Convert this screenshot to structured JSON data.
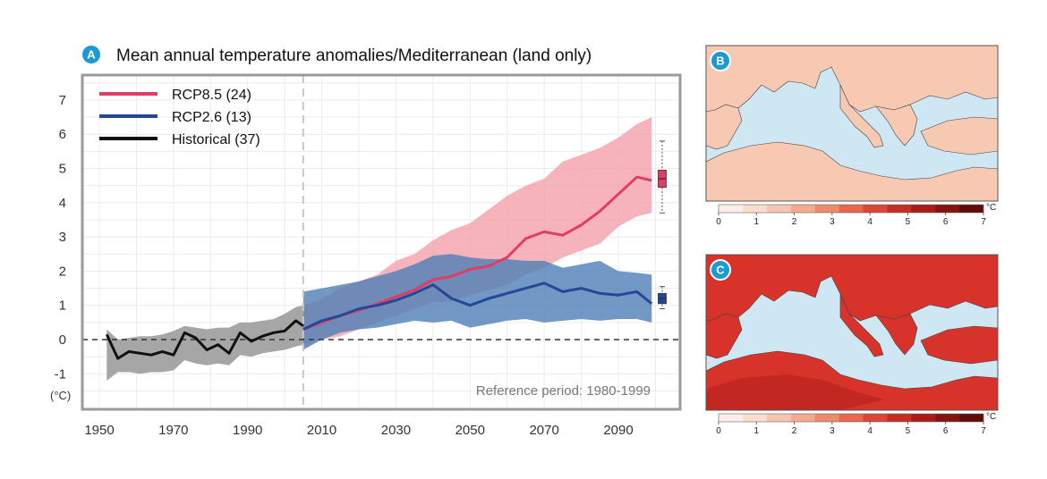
{
  "panel_a": {
    "badge": "A",
    "title": "Mean annual temperature anomalies/Mediterranean (land only)",
    "y_unit": "(°C)",
    "reference_note": "Reference period: 1980-1999"
  },
  "panel_b": {
    "badge": "B"
  },
  "panel_c": {
    "badge": "C"
  },
  "colorbar": {
    "ticks": [
      "0",
      "1",
      "2",
      "3",
      "4",
      "5",
      "6",
      "7"
    ],
    "unit": "°C",
    "colors": [
      "#fcefe9",
      "#f9ddd0",
      "#f6c5b1",
      "#f3aa8e",
      "#ee8a6c",
      "#e8674d",
      "#dd4537",
      "#c82d24",
      "#aa1b17",
      "#861310",
      "#5e0b09"
    ]
  },
  "colors": {
    "rcp85_line": "#e23c64",
    "rcp85_band": "#f4a0aa",
    "rcp26_line": "#25479a",
    "rcp26_band": "#4f80b8",
    "hist_line": "#111111",
    "hist_band": "#a6a6a6",
    "sea": "#cfe6f3",
    "map_b_land": "#f7c9b3",
    "map_c_land": "#d8332a"
  },
  "chart_data": {
    "type": "line",
    "xlim": [
      1945,
      2110
    ],
    "ylim": [
      -1.5,
      7.8
    ],
    "xticks": [
      1950,
      1970,
      1990,
      2010,
      2030,
      2050,
      2070,
      2090
    ],
    "yticks": [
      -1,
      0,
      1,
      2,
      3,
      4,
      5,
      6,
      7
    ],
    "grid": true,
    "legend_position": "top-left",
    "vline_x": 2005,
    "hline_y": 0,
    "series": [
      {
        "name": "RCP8.5 (24)",
        "key": "rcp85",
        "x": [
          2005,
          2010,
          2015,
          2020,
          2025,
          2030,
          2035,
          2040,
          2045,
          2050,
          2055,
          2060,
          2065,
          2070,
          2075,
          2080,
          2085,
          2090,
          2095,
          2099
        ],
        "values": [
          0.3,
          0.5,
          0.7,
          0.85,
          1.05,
          1.25,
          1.45,
          1.75,
          1.85,
          2.05,
          2.15,
          2.4,
          2.95,
          3.15,
          3.05,
          3.35,
          3.75,
          4.25,
          4.75,
          4.65
        ],
        "lower": [
          -0.2,
          0.0,
          0.1,
          0.3,
          0.5,
          0.7,
          0.9,
          1.1,
          1.1,
          1.3,
          1.45,
          1.6,
          1.9,
          2.1,
          2.4,
          2.6,
          2.8,
          3.3,
          3.6,
          3.7
        ],
        "upper": [
          1.0,
          1.2,
          1.5,
          1.7,
          1.9,
          2.3,
          2.5,
          2.9,
          3.2,
          3.4,
          3.8,
          4.2,
          4.5,
          4.7,
          5.2,
          5.4,
          5.6,
          5.9,
          6.3,
          6.5
        ]
      },
      {
        "name": "RCP2.6 (13)",
        "key": "rcp26",
        "x": [
          2005,
          2010,
          2015,
          2020,
          2025,
          2030,
          2035,
          2040,
          2045,
          2050,
          2055,
          2060,
          2065,
          2070,
          2075,
          2080,
          2085,
          2090,
          2095,
          2099
        ],
        "values": [
          0.3,
          0.55,
          0.7,
          0.9,
          1.0,
          1.15,
          1.35,
          1.6,
          1.2,
          1.0,
          1.2,
          1.35,
          1.5,
          1.65,
          1.4,
          1.5,
          1.35,
          1.3,
          1.4,
          1.05
        ],
        "lower": [
          -0.3,
          0.0,
          0.2,
          0.3,
          0.35,
          0.45,
          0.55,
          0.5,
          0.55,
          0.35,
          0.45,
          0.55,
          0.6,
          0.5,
          0.55,
          0.6,
          0.55,
          0.6,
          0.6,
          0.5
        ],
        "upper": [
          1.4,
          1.5,
          1.6,
          1.7,
          1.85,
          2.0,
          2.2,
          2.45,
          2.5,
          2.4,
          2.35,
          2.35,
          2.3,
          2.3,
          2.1,
          2.2,
          2.3,
          2.0,
          1.95,
          1.9
        ]
      },
      {
        "name": "Historical (37)",
        "key": "hist",
        "x": [
          1952,
          1955,
          1958,
          1961,
          1964,
          1967,
          1970,
          1973,
          1976,
          1979,
          1982,
          1985,
          1988,
          1991,
          1994,
          1997,
          2000,
          2003,
          2005
        ],
        "values": [
          0.15,
          -0.55,
          -0.35,
          -0.4,
          -0.45,
          -0.35,
          -0.45,
          0.2,
          0.05,
          -0.3,
          -0.15,
          -0.4,
          0.2,
          -0.05,
          0.1,
          0.2,
          0.25,
          0.55,
          0.4
        ],
        "lower": [
          -1.2,
          -0.95,
          -0.95,
          -1.0,
          -0.95,
          -0.95,
          -0.9,
          -0.6,
          -0.7,
          -0.75,
          -0.7,
          -0.75,
          -0.45,
          -0.5,
          -0.4,
          -0.35,
          -0.3,
          -0.2,
          -0.15
        ],
        "upper": [
          0.3,
          0.0,
          0.05,
          0.1,
          0.1,
          0.15,
          0.25,
          0.4,
          0.35,
          0.3,
          0.35,
          0.35,
          0.5,
          0.5,
          0.55,
          0.6,
          0.75,
          0.95,
          1.0
        ]
      }
    ],
    "boxplots": [
      {
        "key": "rcp85",
        "min": 3.7,
        "q1": 4.45,
        "median": 4.7,
        "q3": 4.95,
        "max": 5.8
      },
      {
        "key": "rcp26",
        "min": 0.9,
        "q1": 1.05,
        "median": 1.2,
        "q3": 1.35,
        "max": 1.55
      }
    ]
  }
}
